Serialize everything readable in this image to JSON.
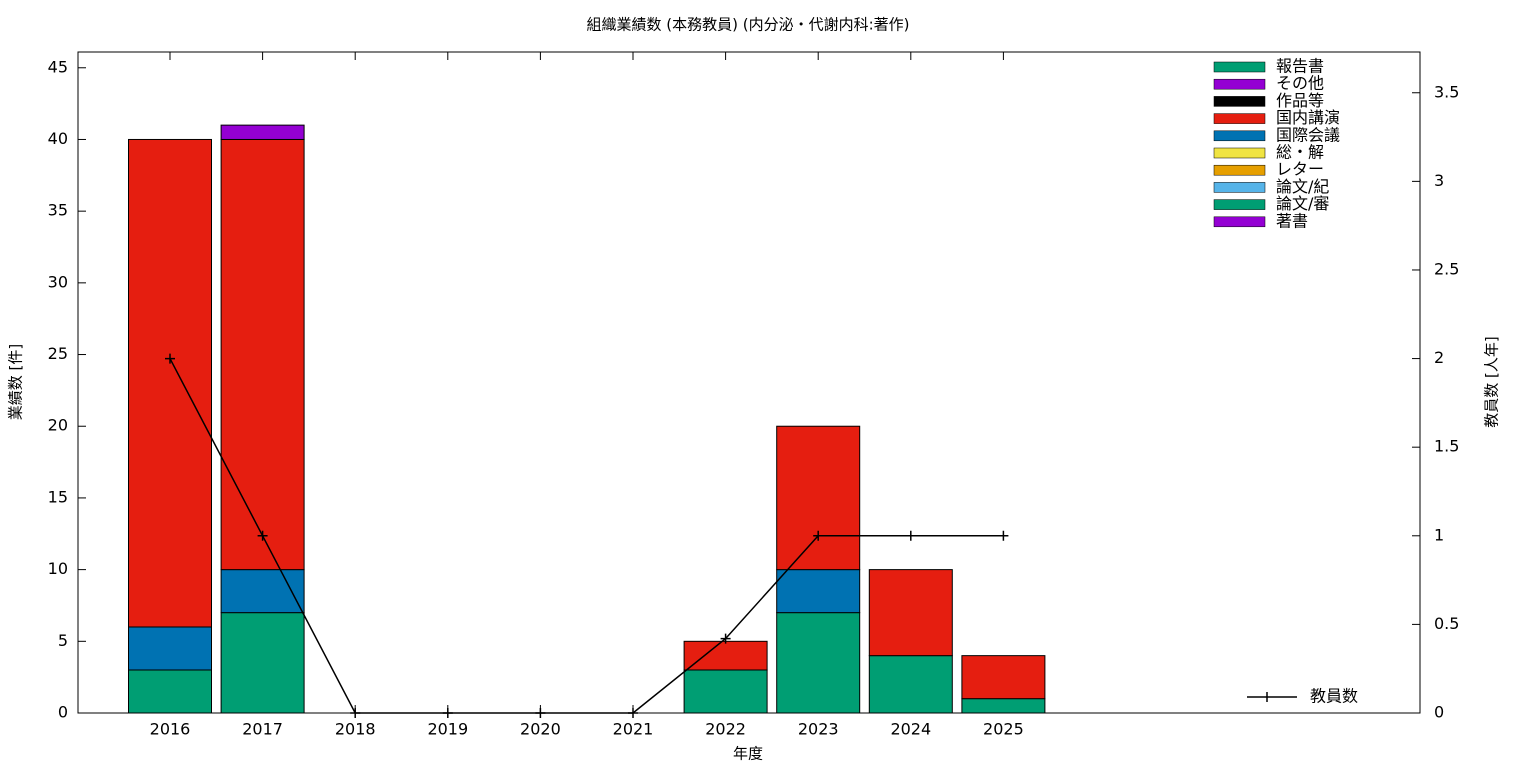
{
  "chart_data": {
    "type": "bar",
    "stacked": true,
    "title": "組織業績数 (本務教員) (内分泌・代謝内科:著作)",
    "x_label": "年度",
    "y_label": "業績数 [件]",
    "y2_label": "教員数 [人年]",
    "categories": [
      "2016",
      "2017",
      "2018",
      "2019",
      "2020",
      "2021",
      "2022",
      "2023",
      "2024",
      "2025"
    ],
    "series": [
      {
        "name": "著書",
        "color": "#9400d3",
        "values": [
          0,
          0,
          0,
          0,
          0,
          0,
          0,
          0,
          0,
          0
        ]
      },
      {
        "name": "論文/審",
        "color": "#009e73",
        "values": [
          3,
          7,
          0,
          0,
          0,
          0,
          3,
          7,
          4,
          1
        ]
      },
      {
        "name": "論文/紀",
        "color": "#56b4e9",
        "values": [
          0,
          0,
          0,
          0,
          0,
          0,
          0,
          0,
          0,
          0
        ]
      },
      {
        "name": "レター",
        "color": "#e69f00",
        "values": [
          0,
          0,
          0,
          0,
          0,
          0,
          0,
          0,
          0,
          0
        ]
      },
      {
        "name": "総・解",
        "color": "#f0e442",
        "values": [
          0,
          0,
          0,
          0,
          0,
          0,
          0,
          0,
          0,
          0
        ]
      },
      {
        "name": "国際会議",
        "color": "#0072b2",
        "values": [
          3,
          3,
          0,
          0,
          0,
          0,
          0,
          3,
          0,
          0
        ]
      },
      {
        "name": "国内講演",
        "color": "#e51e10",
        "values": [
          34,
          30,
          0,
          0,
          0,
          0,
          2,
          10,
          6,
          3
        ]
      },
      {
        "name": "作品等",
        "color": "#000000",
        "values": [
          0,
          0,
          0,
          0,
          0,
          0,
          0,
          0,
          0,
          0
        ]
      },
      {
        "name": "その他",
        "color": "#9400d3",
        "values": [
          0,
          1,
          0,
          0,
          0,
          0,
          0,
          0,
          0,
          0
        ]
      },
      {
        "name": "報告書",
        "color": "#009e73",
        "values": [
          0,
          0,
          0,
          0,
          0,
          0,
          0,
          0,
          0,
          0
        ]
      },
      {
        "name": "教員数",
        "type": "line",
        "axis": "y2",
        "color": "#000000",
        "values": [
          2,
          1,
          0,
          0,
          0,
          0,
          0.42,
          1,
          1,
          1
        ]
      }
    ],
    "ylim": [
      0,
      46.1
    ],
    "yticks": [
      0,
      5,
      10,
      15,
      20,
      25,
      30,
      35,
      40,
      45
    ],
    "y2lim": [
      0,
      3.73
    ],
    "y2ticks": [
      0,
      0.5,
      1,
      1.5,
      2,
      2.5,
      3,
      3.5
    ]
  }
}
